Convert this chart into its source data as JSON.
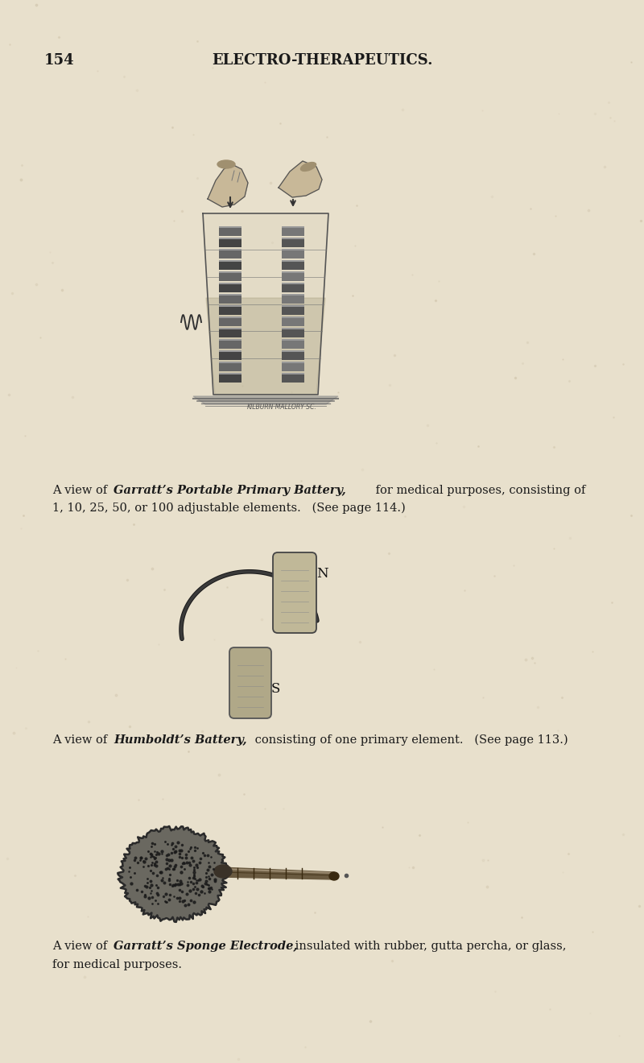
{
  "background_color": "#e8e0cc",
  "page_number": "154",
  "header_title": "ELECTRO-THERAPEUTICS.",
  "text_color": "#1a1a1a",
  "cap1_line1_normal": "A view of ",
  "cap1_line1_italic": "Garratt’s Portable Primary Battery,",
  "cap1_line1_rest": " for medical purposes, consisting of",
  "cap1_line2": "1, 10, 25, 50, or 100 adjustable elements.   (See page 114.)",
  "cap2_normal": "A view of ",
  "cap2_italic": "Humboldt’s Battery,",
  "cap2_rest": " consisting of one primary element.   (See page 113.)",
  "cap3_normal": "A view of ",
  "cap3_italic": "Garratt’s Sponge Electrode,",
  "cap3_line1_rest": " insulated with rubber, gutta percha, or glass,",
  "cap3_line2": "for medical purposes.",
  "kilburn_text": "KILBURN·MALLORY·SC."
}
